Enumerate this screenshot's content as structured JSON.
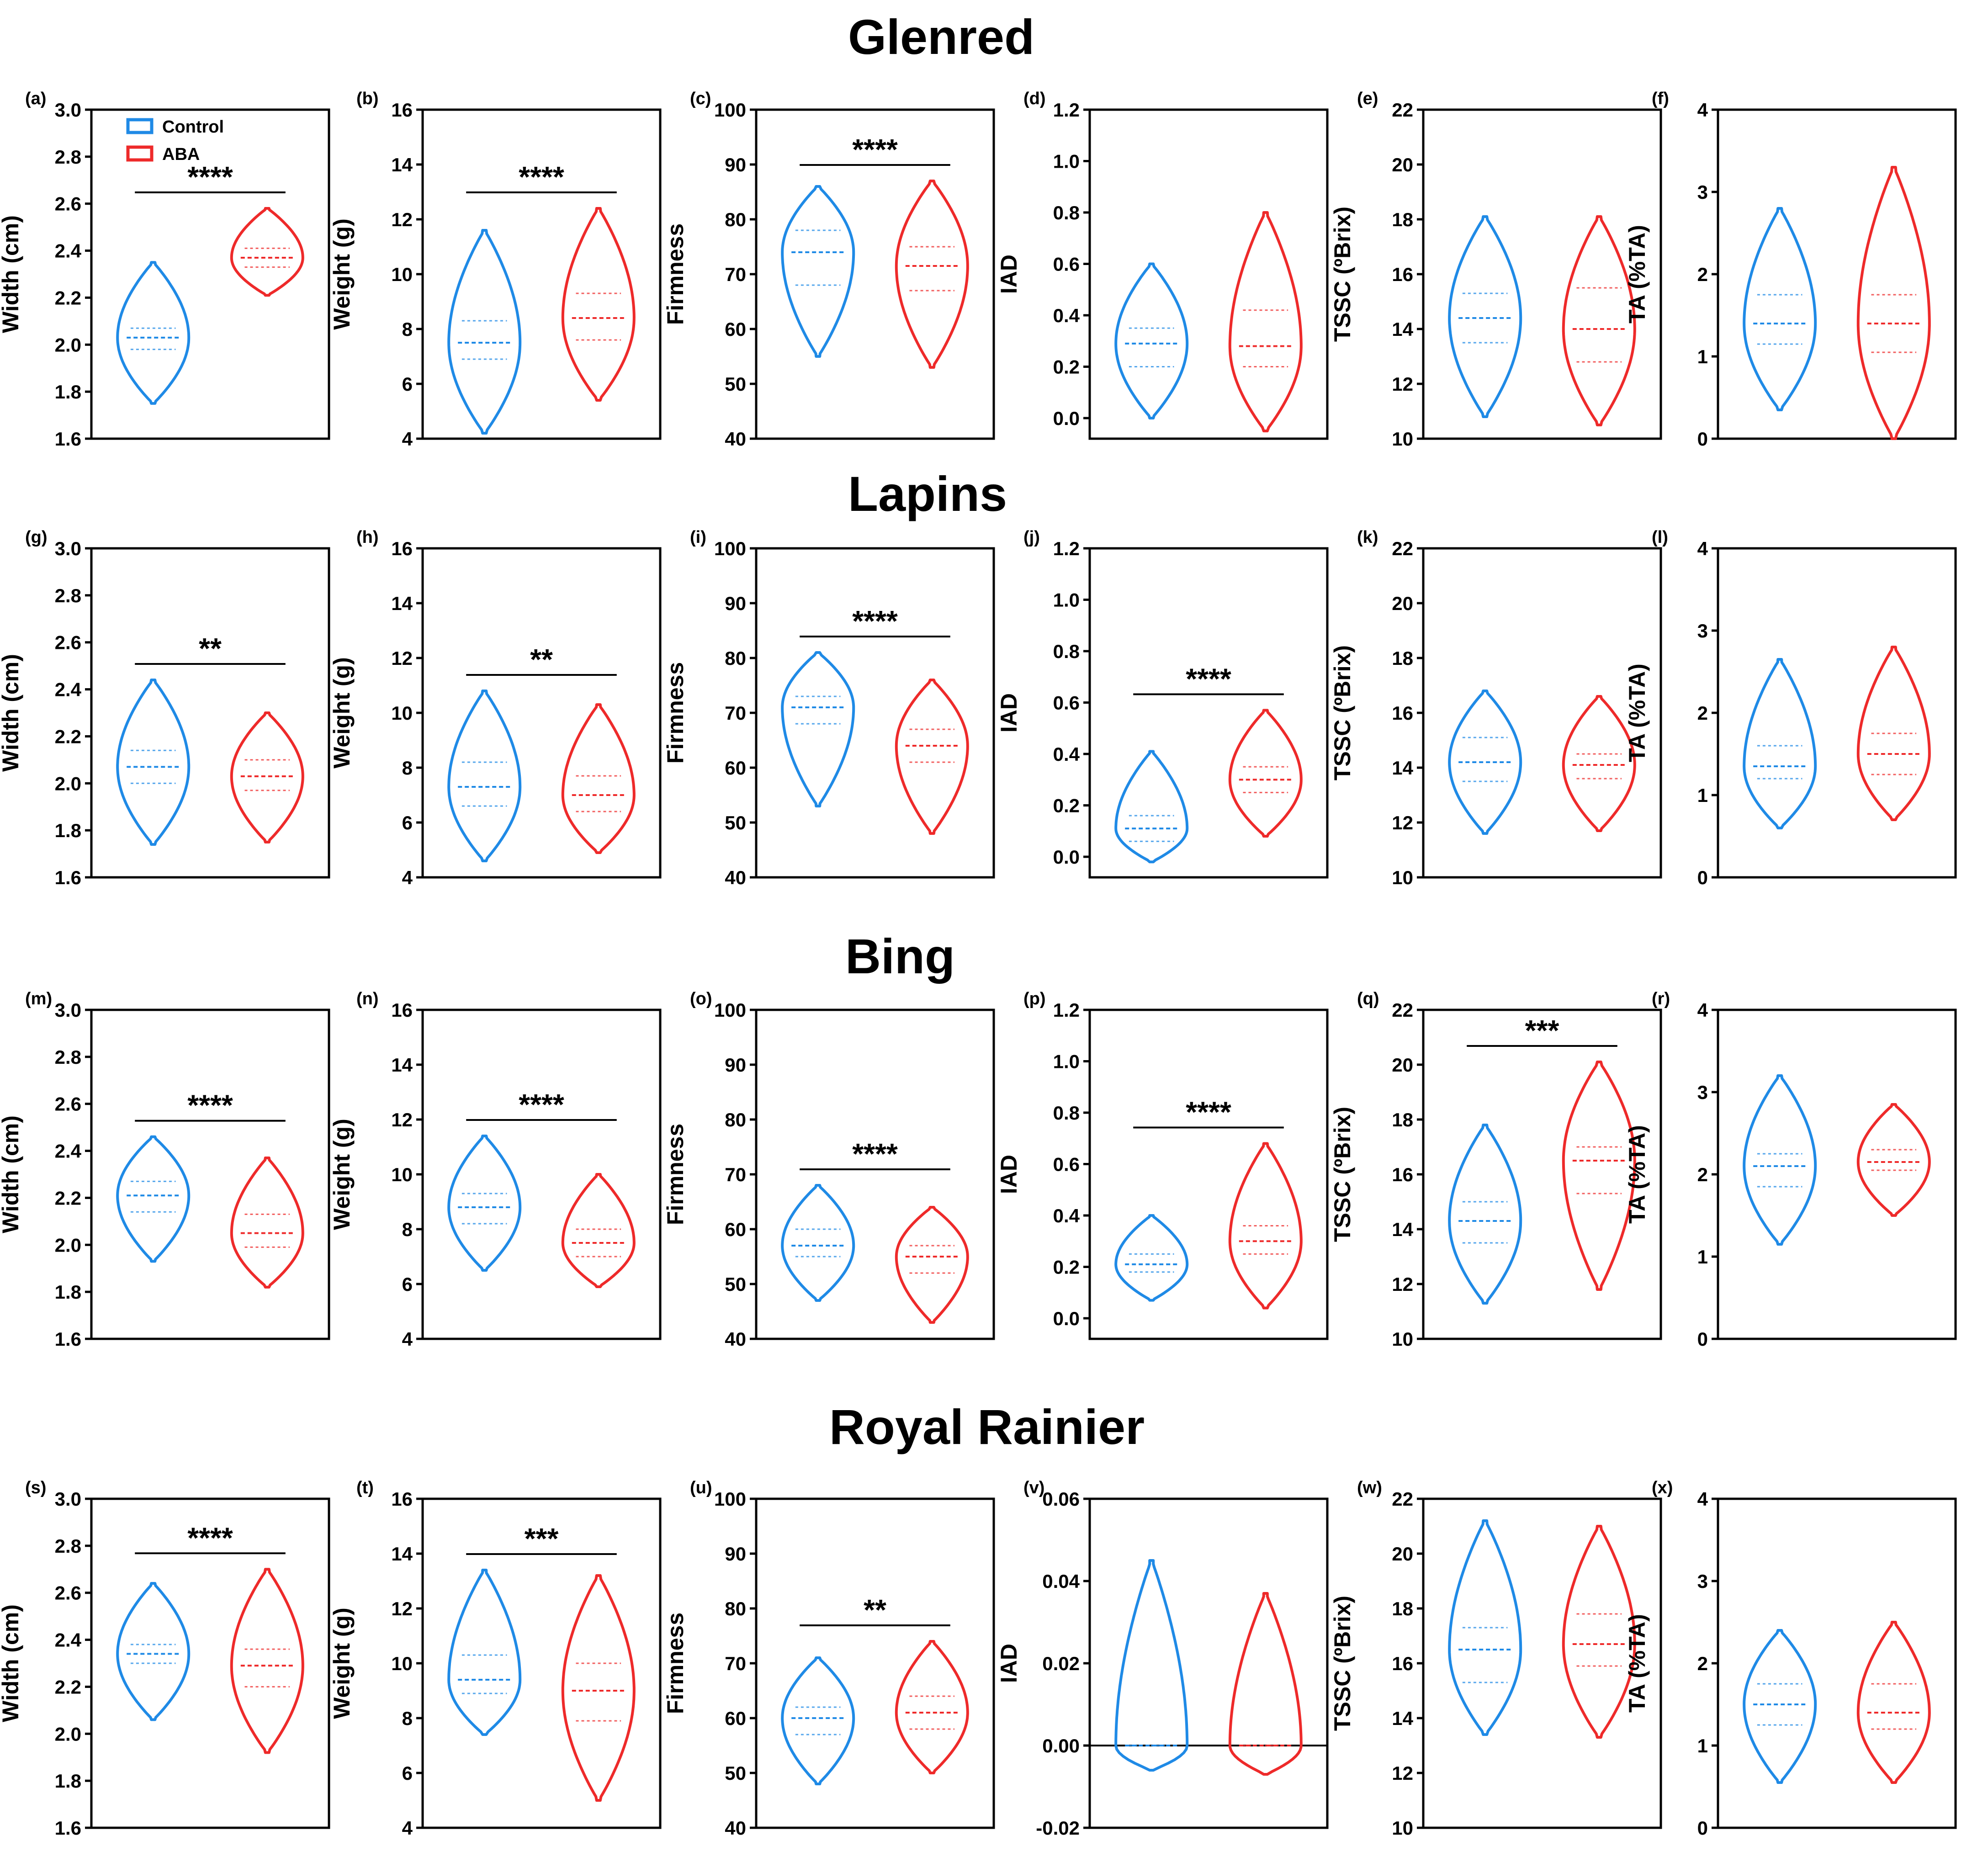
{
  "colors": {
    "control": "#1f8ae6",
    "aba": "#ee2a2a",
    "axis": "#000000"
  },
  "legend": {
    "control": "Control",
    "aba": "ABA"
  },
  "rows": [
    {
      "title": "Glenred"
    },
    {
      "title": "Lapins"
    },
    {
      "title": "Bing"
    },
    {
      "title": "Royal Rainier"
    }
  ],
  "chart_data": [
    {
      "panel": "(a)",
      "row": "Glenred",
      "type": "violin",
      "ylabel": "Width (cm)",
      "ylim": [
        1.6,
        3.0
      ],
      "ticks": [
        "1.6",
        "1.8",
        "2.0",
        "2.2",
        "2.4",
        "2.6",
        "2.8",
        "3.0"
      ],
      "significance": "****",
      "series": [
        {
          "name": "Control",
          "min": 1.75,
          "max": 2.35,
          "q1": 1.98,
          "median": 2.03,
          "q3": 2.07
        },
        {
          "name": "ABA",
          "min": 2.21,
          "max": 2.58,
          "q1": 2.33,
          "median": 2.37,
          "q3": 2.41
        }
      ]
    },
    {
      "panel": "(b)",
      "row": "Glenred",
      "type": "violin",
      "ylabel": "Weight (g)",
      "ylim": [
        4,
        16
      ],
      "ticks": [
        "4",
        "6",
        "8",
        "10",
        "12",
        "14",
        "16"
      ],
      "significance": "****",
      "series": [
        {
          "name": "Control",
          "min": 4.2,
          "max": 11.6,
          "q1": 6.9,
          "median": 7.5,
          "q3": 8.3
        },
        {
          "name": "ABA",
          "min": 5.4,
          "max": 12.4,
          "q1": 7.6,
          "median": 8.4,
          "q3": 9.3
        }
      ]
    },
    {
      "panel": "(c)",
      "row": "Glenred",
      "type": "violin",
      "ylabel": "Firmness",
      "ylim": [
        40,
        100
      ],
      "ticks": [
        "40",
        "50",
        "60",
        "70",
        "80",
        "90",
        "100"
      ],
      "significance": "****",
      "series": [
        {
          "name": "Control",
          "min": 55,
          "max": 86,
          "q1": 68,
          "median": 74,
          "q3": 78
        },
        {
          "name": "ABA",
          "min": 53,
          "max": 87,
          "q1": 67,
          "median": 71.5,
          "q3": 75
        }
      ]
    },
    {
      "panel": "(d)",
      "row": "Glenred",
      "type": "violin",
      "ylabel": "IAD",
      "ylim": [
        -0.08,
        1.2
      ],
      "ticks": [
        "0.0",
        "0.2",
        "0.4",
        "0.6",
        "0.8",
        "1.0",
        "1.2"
      ],
      "significance": "",
      "series": [
        {
          "name": "Control",
          "min": 0.0,
          "max": 0.6,
          "q1": 0.2,
          "median": 0.29,
          "q3": 0.35
        },
        {
          "name": "ABA",
          "min": -0.05,
          "max": 0.8,
          "q1": 0.2,
          "median": 0.28,
          "q3": 0.42
        }
      ]
    },
    {
      "panel": "(e)",
      "row": "Glenred",
      "type": "violin",
      "ylabel": "TSSC (ºBrix)",
      "ylim": [
        10,
        22
      ],
      "ticks": [
        "10",
        "12",
        "14",
        "16",
        "18",
        "20",
        "22"
      ],
      "significance": "",
      "series": [
        {
          "name": "Control",
          "min": 10.8,
          "max": 18.1,
          "q1": 13.5,
          "median": 14.4,
          "q3": 15.3
        },
        {
          "name": "ABA",
          "min": 10.5,
          "max": 18.1,
          "q1": 12.8,
          "median": 14.0,
          "q3": 15.5
        }
      ]
    },
    {
      "panel": "(f)",
      "row": "Glenred",
      "type": "violin",
      "ylabel": "TA (%TA)",
      "ylim": [
        0,
        4
      ],
      "ticks": [
        "0",
        "1",
        "2",
        "3",
        "4"
      ],
      "significance": "",
      "series": [
        {
          "name": "Control",
          "min": 0.35,
          "max": 2.8,
          "q1": 1.15,
          "median": 1.4,
          "q3": 1.75
        },
        {
          "name": "ABA",
          "min": 0.0,
          "max": 3.3,
          "q1": 1.05,
          "median": 1.4,
          "q3": 1.75
        }
      ]
    },
    {
      "panel": "(g)",
      "row": "Lapins",
      "type": "violin",
      "ylabel": "Width (cm)",
      "ylim": [
        1.6,
        3.0
      ],
      "ticks": [
        "1.6",
        "1.8",
        "2.0",
        "2.2",
        "2.4",
        "2.6",
        "2.8",
        "3.0"
      ],
      "significance": "**",
      "series": [
        {
          "name": "Control",
          "min": 1.74,
          "max": 2.44,
          "q1": 2.0,
          "median": 2.07,
          "q3": 2.14
        },
        {
          "name": "ABA",
          "min": 1.75,
          "max": 2.3,
          "q1": 1.97,
          "median": 2.03,
          "q3": 2.1
        }
      ]
    },
    {
      "panel": "(h)",
      "row": "Lapins",
      "type": "violin",
      "ylabel": "Weight (g)",
      "ylim": [
        4,
        16
      ],
      "ticks": [
        "4",
        "6",
        "8",
        "10",
        "12",
        "14",
        "16"
      ],
      "significance": "**",
      "series": [
        {
          "name": "Control",
          "min": 4.6,
          "max": 10.8,
          "q1": 6.6,
          "median": 7.3,
          "q3": 8.2
        },
        {
          "name": "ABA",
          "min": 4.9,
          "max": 10.3,
          "q1": 6.4,
          "median": 7.0,
          "q3": 7.7
        }
      ]
    },
    {
      "panel": "(i)",
      "row": "Lapins",
      "type": "violin",
      "ylabel": "Firmness",
      "ylim": [
        40,
        100
      ],
      "ticks": [
        "40",
        "50",
        "60",
        "70",
        "80",
        "90",
        "100"
      ],
      "significance": "****",
      "series": [
        {
          "name": "Control",
          "min": 53,
          "max": 81,
          "q1": 68,
          "median": 71,
          "q3": 73
        },
        {
          "name": "ABA",
          "min": 48,
          "max": 76,
          "q1": 61,
          "median": 64,
          "q3": 67
        }
      ]
    },
    {
      "panel": "(j)",
      "row": "Lapins",
      "type": "violin",
      "ylabel": "IAD",
      "ylim": [
        -0.08,
        1.2
      ],
      "ticks": [
        "0.0",
        "0.2",
        "0.4",
        "0.6",
        "0.8",
        "1.0",
        "1.2"
      ],
      "significance": "****",
      "series": [
        {
          "name": "Control",
          "min": -0.02,
          "max": 0.41,
          "q1": 0.06,
          "median": 0.11,
          "q3": 0.16
        },
        {
          "name": "ABA",
          "min": 0.08,
          "max": 0.57,
          "q1": 0.25,
          "median": 0.3,
          "q3": 0.35
        }
      ]
    },
    {
      "panel": "(k)",
      "row": "Lapins",
      "type": "violin",
      "ylabel": "TSSC (ºBrix)",
      "ylim": [
        10,
        22
      ],
      "ticks": [
        "10",
        "12",
        "14",
        "16",
        "18",
        "20",
        "22"
      ],
      "significance": "",
      "series": [
        {
          "name": "Control",
          "min": 11.6,
          "max": 16.8,
          "q1": 13.5,
          "median": 14.2,
          "q3": 15.1
        },
        {
          "name": "ABA",
          "min": 11.7,
          "max": 16.6,
          "q1": 13.6,
          "median": 14.1,
          "q3": 14.5
        }
      ]
    },
    {
      "panel": "(l)",
      "row": "Lapins",
      "type": "violin",
      "ylabel": "TA (%TA)",
      "ylim": [
        0,
        4
      ],
      "ticks": [
        "0",
        "1",
        "2",
        "3",
        "4"
      ],
      "significance": "",
      "series": [
        {
          "name": "Control",
          "min": 0.6,
          "max": 2.65,
          "q1": 1.2,
          "median": 1.35,
          "q3": 1.6
        },
        {
          "name": "ABA",
          "min": 0.7,
          "max": 2.8,
          "q1": 1.25,
          "median": 1.5,
          "q3": 1.75
        }
      ]
    },
    {
      "panel": "(m)",
      "row": "Bing",
      "type": "violin",
      "ylabel": "Width (cm)",
      "ylim": [
        1.6,
        3.0
      ],
      "ticks": [
        "1.6",
        "1.8",
        "2.0",
        "2.2",
        "2.4",
        "2.6",
        "2.8",
        "3.0"
      ],
      "significance": "****",
      "series": [
        {
          "name": "Control",
          "min": 1.93,
          "max": 2.46,
          "q1": 2.14,
          "median": 2.21,
          "q3": 2.27
        },
        {
          "name": "ABA",
          "min": 1.82,
          "max": 2.37,
          "q1": 1.99,
          "median": 2.05,
          "q3": 2.13
        }
      ]
    },
    {
      "panel": "(n)",
      "row": "Bing",
      "type": "violin",
      "ylabel": "Weight (g)",
      "ylim": [
        4,
        16
      ],
      "ticks": [
        "4",
        "6",
        "8",
        "10",
        "12",
        "14",
        "16"
      ],
      "significance": "****",
      "series": [
        {
          "name": "Control",
          "min": 6.5,
          "max": 11.4,
          "q1": 8.2,
          "median": 8.8,
          "q3": 9.3
        },
        {
          "name": "ABA",
          "min": 5.9,
          "max": 10.0,
          "q1": 7.0,
          "median": 7.5,
          "q3": 8.0
        }
      ]
    },
    {
      "panel": "(o)",
      "row": "Bing",
      "type": "violin",
      "ylabel": "Firmness",
      "ylim": [
        40,
        100
      ],
      "ticks": [
        "40",
        "50",
        "60",
        "70",
        "80",
        "90",
        "100"
      ],
      "significance": "****",
      "series": [
        {
          "name": "Control",
          "min": 47,
          "max": 68,
          "q1": 55,
          "median": 57,
          "q3": 60
        },
        {
          "name": "ABA",
          "min": 43,
          "max": 64,
          "q1": 52,
          "median": 55,
          "q3": 57
        }
      ]
    },
    {
      "panel": "(p)",
      "row": "Bing",
      "type": "violin",
      "ylabel": "IAD",
      "ylim": [
        -0.08,
        1.2
      ],
      "ticks": [
        "0.0",
        "0.2",
        "0.4",
        "0.6",
        "0.8",
        "1.0",
        "1.2"
      ],
      "significance": "****",
      "series": [
        {
          "name": "Control",
          "min": 0.07,
          "max": 0.4,
          "q1": 0.18,
          "median": 0.21,
          "q3": 0.25
        },
        {
          "name": "ABA",
          "min": 0.04,
          "max": 0.68,
          "q1": 0.25,
          "median": 0.3,
          "q3": 0.36
        }
      ]
    },
    {
      "panel": "(q)",
      "row": "Bing",
      "type": "violin",
      "ylabel": "TSSC (ºBrix)",
      "ylim": [
        10,
        22
      ],
      "ticks": [
        "10",
        "12",
        "14",
        "16",
        "18",
        "20",
        "22"
      ],
      "significance": "***",
      "series": [
        {
          "name": "Control",
          "min": 11.3,
          "max": 17.8,
          "q1": 13.5,
          "median": 14.3,
          "q3": 15.0
        },
        {
          "name": "ABA",
          "min": 11.8,
          "max": 20.1,
          "q1": 15.3,
          "median": 16.5,
          "q3": 17.0
        }
      ]
    },
    {
      "panel": "(r)",
      "row": "Bing",
      "type": "violin",
      "ylabel": "TA (%TA)",
      "ylim": [
        0,
        4
      ],
      "ticks": [
        "0",
        "1",
        "2",
        "3",
        "4"
      ],
      "significance": "",
      "series": [
        {
          "name": "Control",
          "min": 1.15,
          "max": 3.2,
          "q1": 1.85,
          "median": 2.1,
          "q3": 2.25
        },
        {
          "name": "ABA",
          "min": 1.5,
          "max": 2.85,
          "q1": 2.05,
          "median": 2.15,
          "q3": 2.3
        }
      ]
    },
    {
      "panel": "(s)",
      "row": "Royal Rainier",
      "type": "violin",
      "ylabel": "Width (cm)",
      "ylim": [
        1.6,
        3.0
      ],
      "ticks": [
        "1.6",
        "1.8",
        "2.0",
        "2.2",
        "2.4",
        "2.6",
        "2.8",
        "3.0"
      ],
      "significance": "****",
      "series": [
        {
          "name": "Control",
          "min": 2.06,
          "max": 2.64,
          "q1": 2.3,
          "median": 2.34,
          "q3": 2.38
        },
        {
          "name": "ABA",
          "min": 1.92,
          "max": 2.7,
          "q1": 2.2,
          "median": 2.29,
          "q3": 2.36
        }
      ]
    },
    {
      "panel": "(t)",
      "row": "Royal Rainier",
      "type": "violin",
      "ylabel": "Weight (g)",
      "ylim": [
        4,
        16
      ],
      "ticks": [
        "4",
        "6",
        "8",
        "10",
        "12",
        "14",
        "16"
      ],
      "significance": "***",
      "series": [
        {
          "name": "Control",
          "min": 7.4,
          "max": 13.4,
          "q1": 8.9,
          "median": 9.4,
          "q3": 10.3
        },
        {
          "name": "ABA",
          "min": 5.0,
          "max": 13.2,
          "q1": 7.9,
          "median": 9.0,
          "q3": 10.0
        }
      ]
    },
    {
      "panel": "(u)",
      "row": "Royal Rainier",
      "type": "violin",
      "ylabel": "Firmness",
      "ylim": [
        40,
        100
      ],
      "ticks": [
        "40",
        "50",
        "60",
        "70",
        "80",
        "90",
        "100"
      ],
      "significance": "**",
      "series": [
        {
          "name": "Control",
          "min": 48,
          "max": 71,
          "q1": 57,
          "median": 60,
          "q3": 62
        },
        {
          "name": "ABA",
          "min": 50,
          "max": 74,
          "q1": 58,
          "median": 61,
          "q3": 64
        }
      ]
    },
    {
      "panel": "(v)",
      "row": "Royal Rainier",
      "type": "violin",
      "ylabel": "IAD",
      "ylim": [
        -0.02,
        0.06
      ],
      "ticks": [
        "-0.02",
        "0.00",
        "0.02",
        "0.04",
        "0.06"
      ],
      "significance": "",
      "zero_line": true,
      "series": [
        {
          "name": "Control",
          "min": -0.006,
          "max": 0.045,
          "q1": 0.0,
          "median": 0.0,
          "q3": 0.0
        },
        {
          "name": "ABA",
          "min": -0.007,
          "max": 0.037,
          "q1": 0.0,
          "median": 0.0,
          "q3": 0.0
        }
      ]
    },
    {
      "panel": "(w)",
      "row": "Royal Rainier",
      "type": "violin",
      "ylabel": "TSSC (ºBrix)",
      "ylim": [
        10,
        22
      ],
      "ticks": [
        "10",
        "12",
        "14",
        "16",
        "18",
        "20",
        "22"
      ],
      "significance": "",
      "series": [
        {
          "name": "Control",
          "min": 13.4,
          "max": 21.2,
          "q1": 15.3,
          "median": 16.5,
          "q3": 17.3
        },
        {
          "name": "ABA",
          "min": 13.3,
          "max": 21.0,
          "q1": 15.9,
          "median": 16.7,
          "q3": 17.8
        }
      ]
    },
    {
      "panel": "(x)",
      "row": "Royal Rainier",
      "type": "violin",
      "ylabel": "TA (%TA)",
      "ylim": [
        0,
        4
      ],
      "ticks": [
        "0",
        "1",
        "2",
        "3",
        "4"
      ],
      "significance": "",
      "series": [
        {
          "name": "Control",
          "min": 0.55,
          "max": 2.4,
          "q1": 1.25,
          "median": 1.5,
          "q3": 1.75
        },
        {
          "name": "ABA",
          "min": 0.55,
          "max": 2.5,
          "q1": 1.2,
          "median": 1.4,
          "q3": 1.75
        }
      ]
    }
  ]
}
